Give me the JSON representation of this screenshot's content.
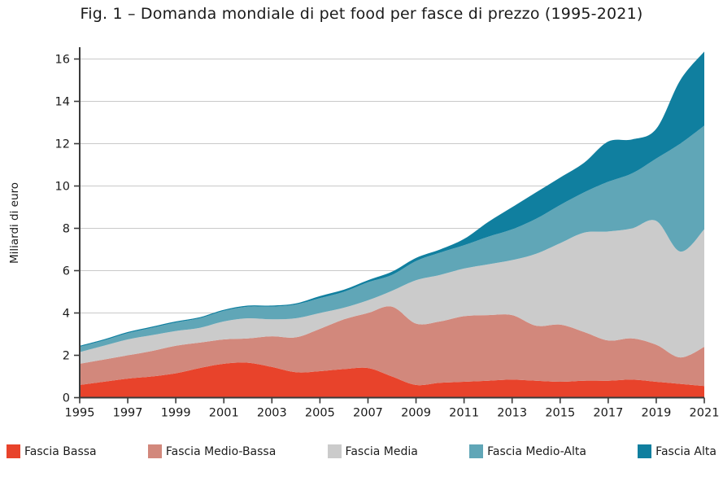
{
  "title": "Fig. 1 – Domanda mondiale di pet food per fasce di prezzo (1995-2021)",
  "chart_data": {
    "type": "area",
    "stacked": true,
    "title": "Fig. 1 – Domanda mondiale di pet food per fasce di prezzo (1995-2021)",
    "xlabel": "",
    "ylabel": "Miliardi di euro",
    "x": [
      1995,
      1996,
      1997,
      1998,
      1999,
      2000,
      2001,
      2002,
      2003,
      2004,
      2005,
      2006,
      2007,
      2008,
      2009,
      2010,
      2011,
      2012,
      2013,
      2014,
      2015,
      2016,
      2017,
      2018,
      2019,
      2020,
      2021
    ],
    "xticks": [
      1995,
      1997,
      1999,
      2001,
      2003,
      2005,
      2007,
      2009,
      2011,
      2013,
      2015,
      2017,
      2019,
      2021
    ],
    "yticks": [
      0,
      2,
      4,
      6,
      8,
      10,
      12,
      14,
      16
    ],
    "ylim": [
      0,
      16.5
    ],
    "grid": true,
    "legend_position": "bottom",
    "axis_color": "#3a3a3a",
    "grid_color": "#c9c9c9",
    "series": [
      {
        "name": "Fascia Bassa",
        "color": "#e8432b",
        "values": [
          0.6,
          0.75,
          0.9,
          1.0,
          1.15,
          1.4,
          1.6,
          1.65,
          1.45,
          1.2,
          1.25,
          1.35,
          1.4,
          1.0,
          0.6,
          0.7,
          0.75,
          0.8,
          0.85,
          0.8,
          0.75,
          0.8,
          0.8,
          0.85,
          0.75,
          0.65,
          0.55
        ]
      },
      {
        "name": "Fascia Medio-Bassa",
        "color": "#d2887c",
        "values": [
          1.0,
          1.05,
          1.1,
          1.2,
          1.3,
          1.2,
          1.15,
          1.15,
          1.45,
          1.65,
          2.0,
          2.35,
          2.6,
          3.3,
          2.9,
          2.9,
          3.1,
          3.1,
          3.05,
          2.6,
          2.7,
          2.3,
          1.9,
          1.95,
          1.75,
          1.25,
          1.85
        ]
      },
      {
        "name": "Fascia Media",
        "color": "#cbcbcb",
        "values": [
          0.55,
          0.65,
          0.75,
          0.75,
          0.7,
          0.7,
          0.85,
          0.95,
          0.8,
          0.9,
          0.75,
          0.55,
          0.6,
          0.75,
          2.05,
          2.2,
          2.25,
          2.4,
          2.6,
          3.4,
          3.85,
          4.7,
          5.15,
          5.2,
          5.85,
          5.0,
          5.55
        ]
      },
      {
        "name": "Fascia Medio-Alta",
        "color": "#60a6b7",
        "values": [
          0.25,
          0.25,
          0.3,
          0.35,
          0.4,
          0.45,
          0.5,
          0.55,
          0.6,
          0.65,
          0.7,
          0.75,
          0.85,
          0.75,
          0.9,
          1.05,
          1.1,
          1.3,
          1.45,
          1.65,
          1.8,
          1.9,
          2.35,
          2.6,
          2.95,
          5.1,
          4.9
        ]
      },
      {
        "name": "Fascia Alta",
        "color": "#107f9f",
        "values": [
          0.05,
          0.05,
          0.05,
          0.05,
          0.05,
          0.05,
          0.05,
          0.05,
          0.05,
          0.05,
          0.1,
          0.1,
          0.1,
          0.15,
          0.15,
          0.15,
          0.3,
          0.7,
          1.05,
          1.25,
          1.3,
          1.4,
          1.9,
          1.6,
          1.4,
          3.0,
          3.5
        ]
      }
    ]
  }
}
